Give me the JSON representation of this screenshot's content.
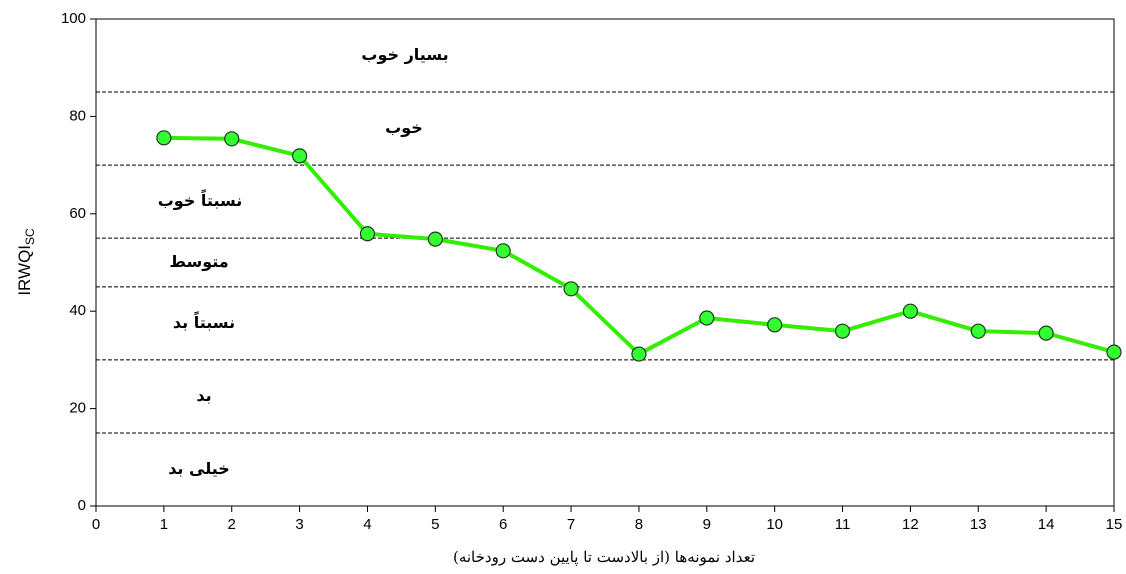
{
  "chart_data": {
    "type": "line",
    "xlabel": "تعداد نمونه‌ها (از بالادست تا پایین دست رودخانه)",
    "ylabel": "IRWQI",
    "ylabel_sub": "SC",
    "x": [
      1,
      2,
      3,
      4,
      5,
      6,
      7,
      8,
      9,
      10,
      11,
      12,
      13,
      14,
      15
    ],
    "series": [
      {
        "color": "#33ee00",
        "marker_color": "#33ff33",
        "values": [
          75.6,
          75.4,
          71.9,
          55.9,
          54.8,
          52.4,
          44.6,
          31.2,
          38.6,
          37.2,
          35.9,
          40.0,
          35.9,
          35.5,
          31.6
        ]
      }
    ],
    "xlim": [
      0,
      15
    ],
    "xticks": [
      0,
      1,
      2,
      3,
      4,
      5,
      6,
      7,
      8,
      9,
      10,
      11,
      12,
      13,
      14,
      15
    ],
    "ylim": [
      0,
      100
    ],
    "yticks": [
      0,
      20,
      40,
      60,
      80,
      100
    ],
    "zones": [
      {
        "label": "بسیار خوب",
        "from": 85,
        "to": 100
      },
      {
        "label": "خوب",
        "from": 70,
        "to": 85
      },
      {
        "label": "نسبتاً خوب",
        "from": 55,
        "to": 70
      },
      {
        "label": "متوسط",
        "from": 45,
        "to": 55
      },
      {
        "label": "نسبتاً بد",
        "from": 30,
        "to": 45
      },
      {
        "label": "بد",
        "from": 15,
        "to": 30
      },
      {
        "label": "خیلی بد",
        "from": 0,
        "to": 15
      }
    ],
    "zone_label_color": "#ee1c1c"
  }
}
